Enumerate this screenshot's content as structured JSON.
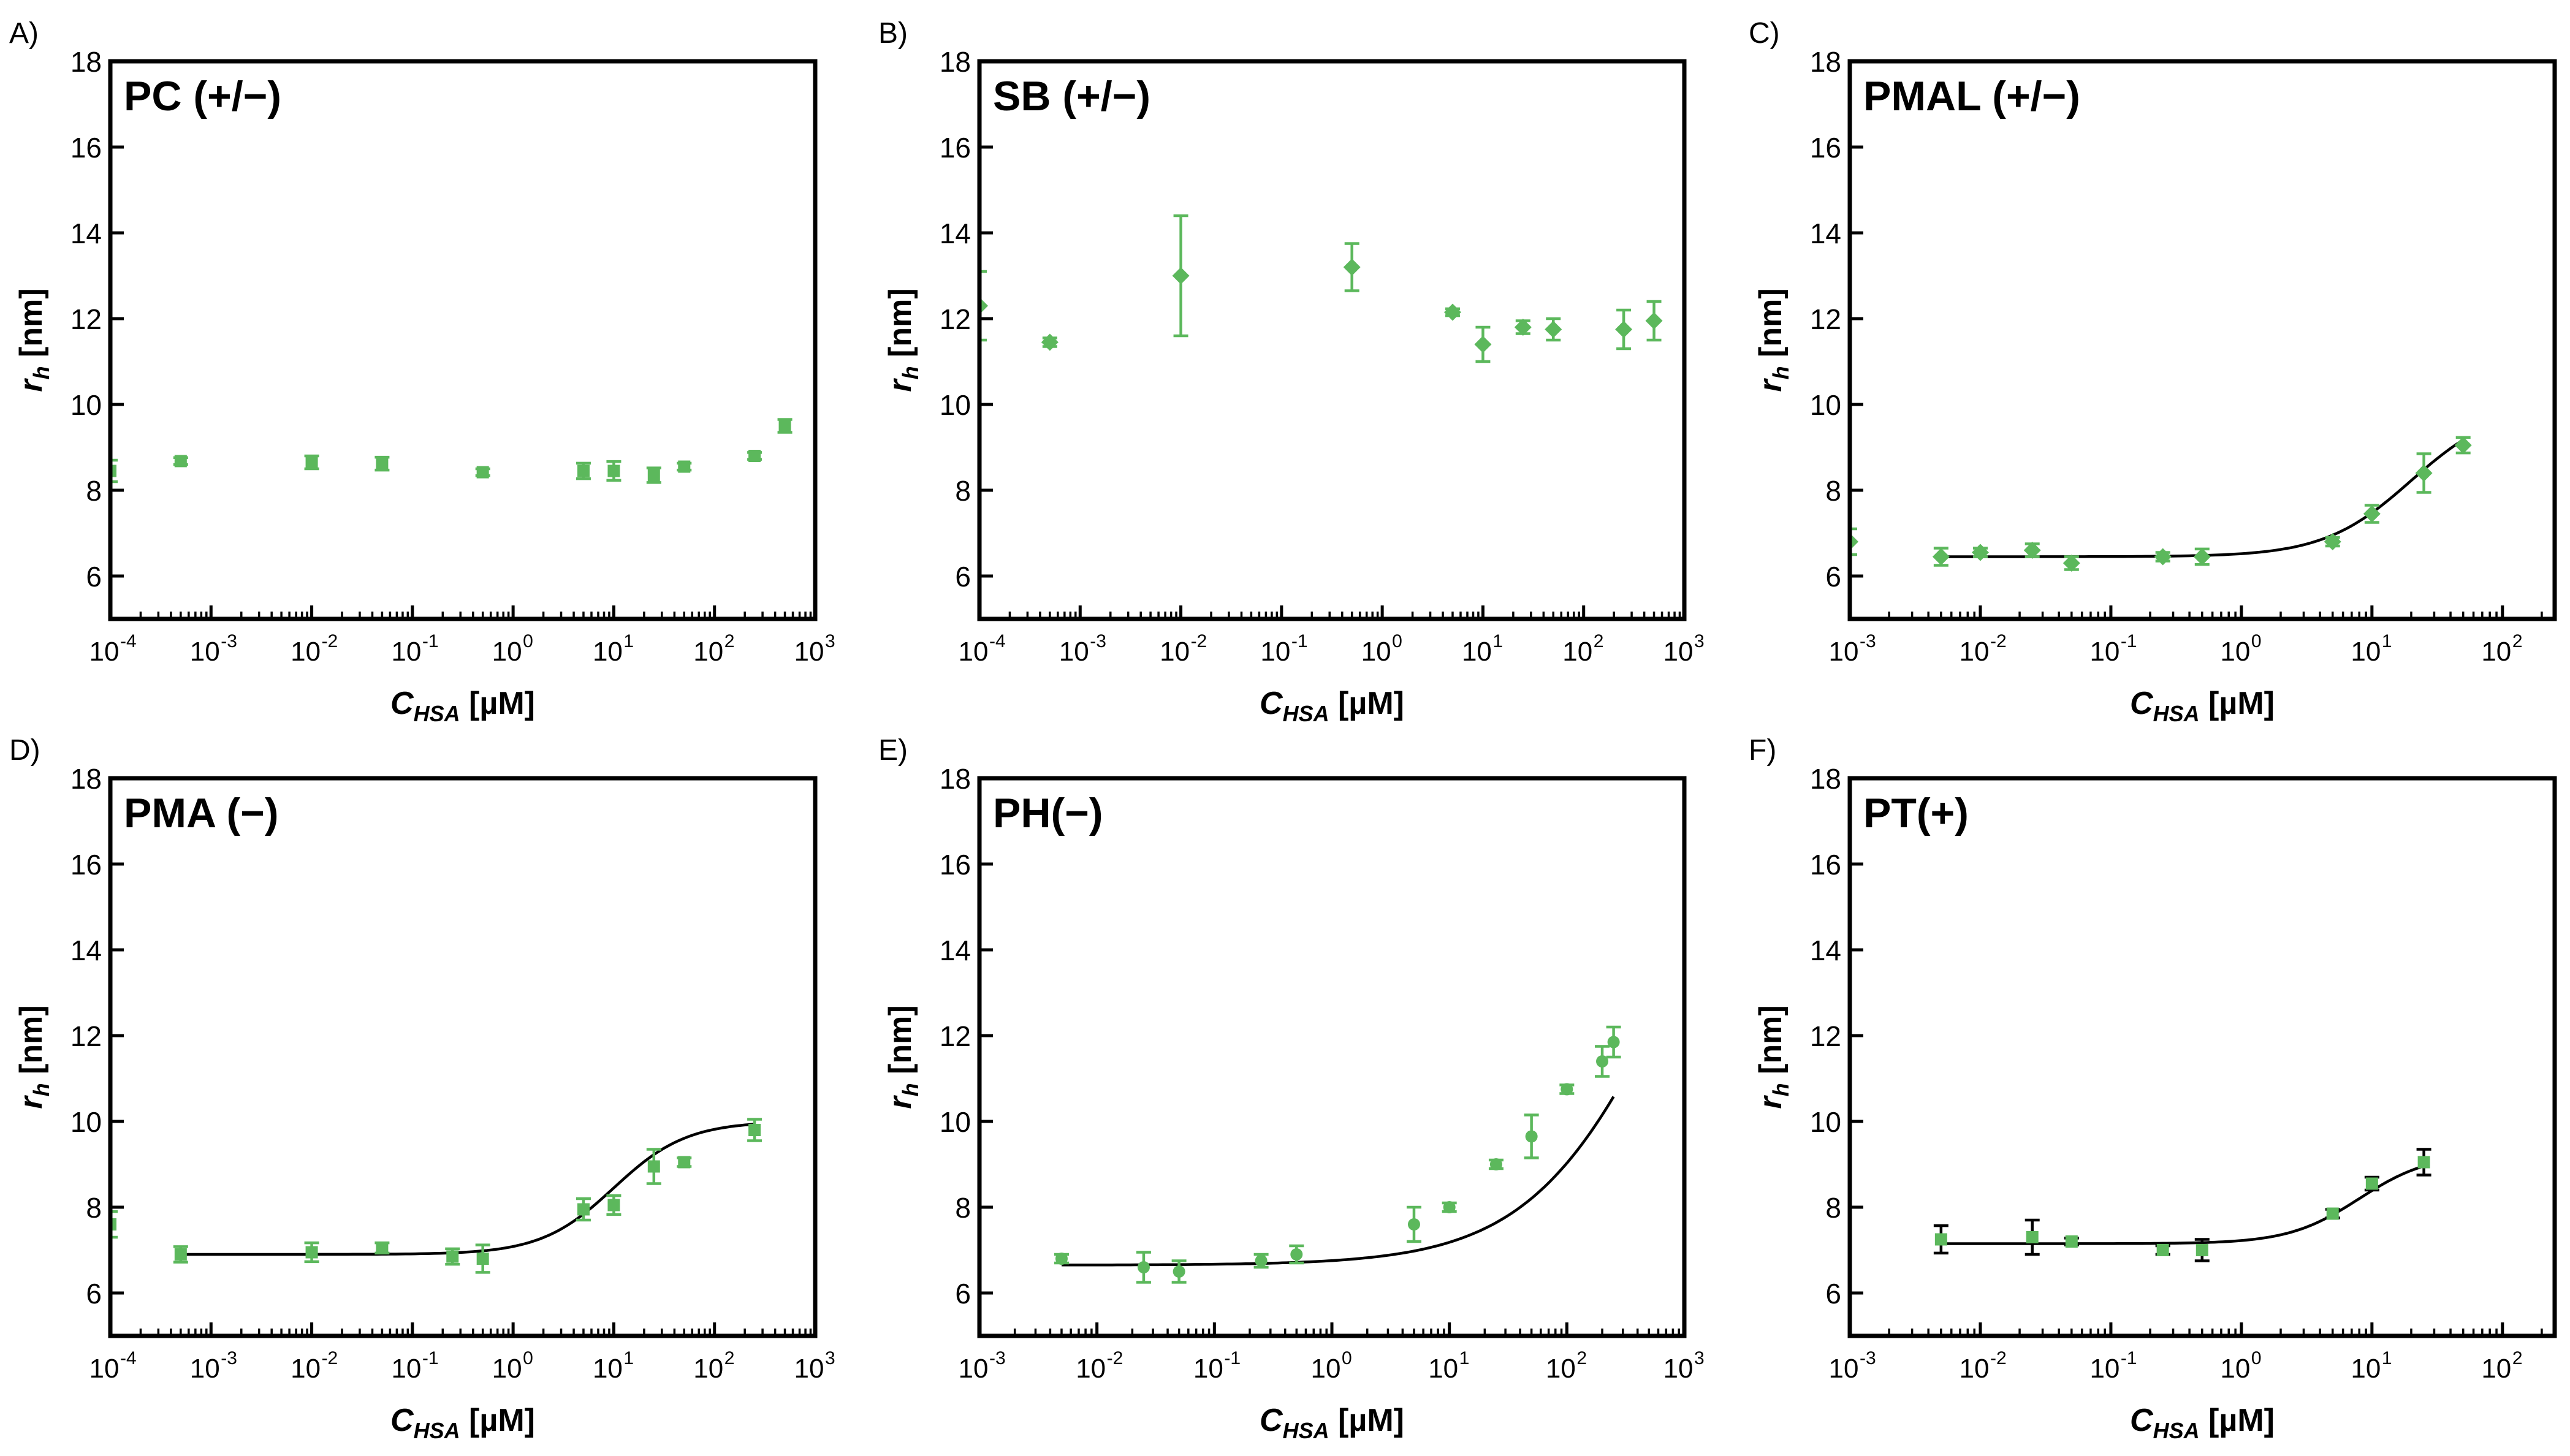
{
  "figure": {
    "marker_color": "#5cb85c",
    "fit_color": "#000000",
    "ylabel_main": "r",
    "ylabel_sub": "h",
    "ylabel_unit": "[nm]",
    "xlabel_main": "C",
    "xlabel_sub": "HSA",
    "xlabel_unit": "[µM]"
  },
  "chart_data": [
    {
      "type": "scatter",
      "panel_letter": "A)",
      "title": "PC (+/−)",
      "xscale": "log",
      "xlim_exp": [
        -4,
        3
      ],
      "ylim": [
        5,
        18
      ],
      "yticks": [
        6,
        8,
        10,
        12,
        14,
        16,
        18
      ],
      "x_tick_labels": [
        "10-4",
        "10-3",
        "10-2",
        "10-1",
        "100",
        "101",
        "102",
        "103"
      ],
      "points": [
        {
          "x": 0.0001,
          "y": 8.45,
          "err": 0.25
        },
        {
          "x": 0.0005,
          "y": 8.68,
          "err": 0.08
        },
        {
          "x": 0.01,
          "y": 8.65,
          "err": 0.15
        },
        {
          "x": 0.05,
          "y": 8.62,
          "err": 0.15
        },
        {
          "x": 0.5,
          "y": 8.42,
          "err": 0.08
        },
        {
          "x": 5,
          "y": 8.45,
          "err": 0.18
        },
        {
          "x": 10,
          "y": 8.45,
          "err": 0.22
        },
        {
          "x": 25,
          "y": 8.35,
          "err": 0.17
        },
        {
          "x": 50,
          "y": 8.55,
          "err": 0.08
        },
        {
          "x": 250,
          "y": 8.8,
          "err": 0.08
        },
        {
          "x": 500,
          "y": 9.5,
          "err": 0.15
        }
      ],
      "fit": null,
      "fit_color": null,
      "err_color": "green"
    },
    {
      "type": "scatter",
      "panel_letter": "B)",
      "title": "SB (+/−)",
      "xscale": "log",
      "xlim_exp": [
        -4,
        3
      ],
      "ylim": [
        5,
        18
      ],
      "yticks": [
        6,
        8,
        10,
        12,
        14,
        16,
        18
      ],
      "x_tick_labels": [
        "10-4",
        "10-3",
        "10-2",
        "10-1",
        "100",
        "101",
        "102",
        "103"
      ],
      "points": [
        {
          "x": 0.0001,
          "y": 12.3,
          "err": 0.8
        },
        {
          "x": 0.0005,
          "y": 11.45,
          "err": 0.1
        },
        {
          "x": 0.01,
          "y": 13.0,
          "err": 1.4
        },
        {
          "x": 0.5,
          "y": 13.2,
          "err": 0.55
        },
        {
          "x": 5,
          "y": 12.15,
          "err": 0.08
        },
        {
          "x": 10,
          "y": 11.4,
          "err": 0.4
        },
        {
          "x": 25,
          "y": 11.8,
          "err": 0.15
        },
        {
          "x": 50,
          "y": 11.75,
          "err": 0.25
        },
        {
          "x": 250,
          "y": 11.75,
          "err": 0.45
        },
        {
          "x": 500,
          "y": 11.95,
          "err": 0.45
        }
      ],
      "fit": null,
      "fit_color": null,
      "err_color": "green"
    },
    {
      "type": "scatter",
      "panel_letter": "C)",
      "title": "PMAL (+/−)",
      "xscale": "log",
      "xlim_exp": [
        -3,
        2.4
      ],
      "ylim": [
        5,
        18
      ],
      "yticks": [
        6,
        8,
        10,
        12,
        14,
        16,
        18
      ],
      "x_tick_labels": [
        "10-3",
        "10-2",
        "10-1",
        "100",
        "101",
        "102"
      ],
      "points": [
        {
          "x": 0.001,
          "y": 6.8,
          "err": 0.3
        },
        {
          "x": 0.005,
          "y": 6.45,
          "err": 0.2
        },
        {
          "x": 0.01,
          "y": 6.55,
          "err": 0.1
        },
        {
          "x": 0.025,
          "y": 6.6,
          "err": 0.15
        },
        {
          "x": 0.05,
          "y": 6.3,
          "err": 0.15
        },
        {
          "x": 0.25,
          "y": 6.45,
          "err": 0.1
        },
        {
          "x": 0.5,
          "y": 6.45,
          "err": 0.18
        },
        {
          "x": 5,
          "y": 6.8,
          "err": 0.1
        },
        {
          "x": 10,
          "y": 7.45,
          "err": 0.2
        },
        {
          "x": 25,
          "y": 8.4,
          "err": 0.45
        },
        {
          "x": 50,
          "y": 9.05,
          "err": 0.18
        }
      ],
      "fit": {
        "base": 6.45,
        "amp": 3.55,
        "x0": 20,
        "n": 1.3,
        "x_range": [
          0.005,
          50
        ]
      },
      "fit_color": "#000000",
      "err_color": "green"
    },
    {
      "type": "scatter",
      "panel_letter": "D)",
      "title": "PMA (−)",
      "xscale": "log",
      "xlim_exp": [
        -4,
        3
      ],
      "ylim": [
        5,
        18
      ],
      "yticks": [
        6,
        8,
        10,
        12,
        14,
        16,
        18
      ],
      "x_tick_labels": [
        "10-4",
        "10-3",
        "10-2",
        "10-1",
        "100",
        "101",
        "102",
        "103"
      ],
      "points": [
        {
          "x": 0.0001,
          "y": 7.6,
          "err": 0.3
        },
        {
          "x": 0.0005,
          "y": 6.9,
          "err": 0.18
        },
        {
          "x": 0.01,
          "y": 6.95,
          "err": 0.22
        },
        {
          "x": 0.05,
          "y": 7.05,
          "err": 0.12
        },
        {
          "x": 0.25,
          "y": 6.85,
          "err": 0.18
        },
        {
          "x": 0.5,
          "y": 6.8,
          "err": 0.32
        },
        {
          "x": 5,
          "y": 7.95,
          "err": 0.25
        },
        {
          "x": 10,
          "y": 8.05,
          "err": 0.22
        },
        {
          "x": 25,
          "y": 8.95,
          "err": 0.4
        },
        {
          "x": 50,
          "y": 9.05,
          "err": 0.1
        },
        {
          "x": 250,
          "y": 9.8,
          "err": 0.25
        }
      ],
      "fit": {
        "base": 6.9,
        "amp": 3.1,
        "x0": 10,
        "n": 1.2,
        "x_range": [
          0.0005,
          250
        ]
      },
      "fit_color": "#000000",
      "err_color": "green"
    },
    {
      "type": "scatter",
      "panel_letter": "E)",
      "title": "PH(−)",
      "xscale": "log",
      "xlim_exp": [
        -3,
        3
      ],
      "ylim": [
        5,
        18
      ],
      "yticks": [
        6,
        8,
        10,
        12,
        14,
        16,
        18
      ],
      "x_tick_labels": [
        "10-3",
        "10-2",
        "10-1",
        "100",
        "101",
        "102",
        "103"
      ],
      "points": [
        {
          "x": 0.005,
          "y": 6.8,
          "err": 0.1
        },
        {
          "x": 0.025,
          "y": 6.6,
          "err": 0.35
        },
        {
          "x": 0.05,
          "y": 6.5,
          "err": 0.25
        },
        {
          "x": 0.25,
          "y": 6.75,
          "err": 0.15
        },
        {
          "x": 0.5,
          "y": 6.9,
          "err": 0.2
        },
        {
          "x": 5,
          "y": 7.6,
          "err": 0.4
        },
        {
          "x": 10,
          "y": 8.0,
          "err": 0.1
        },
        {
          "x": 25,
          "y": 9.0,
          "err": 0.1
        },
        {
          "x": 50,
          "y": 9.65,
          "err": 0.5
        },
        {
          "x": 100,
          "y": 10.75,
          "err": 0.1
        },
        {
          "x": 200,
          "y": 11.4,
          "err": 0.35
        },
        {
          "x": 250,
          "y": 11.85,
          "err": 0.35
        }
      ],
      "fit": {
        "base": 6.65,
        "amp": 13.0,
        "x0": 800,
        "n": 0.72,
        "x_range": [
          0.005,
          250
        ]
      },
      "fit_color": "#000000",
      "err_color": "green"
    },
    {
      "type": "scatter",
      "panel_letter": "F)",
      "title": "PT(+)",
      "xscale": "log",
      "xlim_exp": [
        -3,
        2.4
      ],
      "ylim": [
        5,
        18
      ],
      "yticks": [
        6,
        8,
        10,
        12,
        14,
        16,
        18
      ],
      "x_tick_labels": [
        "10-3",
        "10-2",
        "10-1",
        "100",
        "101",
        "102"
      ],
      "points": [
        {
          "x": 0.005,
          "y": 7.25,
          "err": 0.32
        },
        {
          "x": 0.025,
          "y": 7.3,
          "err": 0.4
        },
        {
          "x": 0.05,
          "y": 7.2,
          "err": 0.08
        },
        {
          "x": 0.25,
          "y": 7.0,
          "err": 0.1
        },
        {
          "x": 0.5,
          "y": 7.0,
          "err": 0.25
        },
        {
          "x": 5,
          "y": 7.85,
          "err": 0.1
        },
        {
          "x": 10,
          "y": 8.55,
          "err": 0.15
        },
        {
          "x": 25,
          "y": 9.05,
          "err": 0.3
        }
      ],
      "fit": {
        "base": 7.15,
        "amp": 2.1,
        "x0": 8,
        "n": 1.6,
        "x_range": [
          0.005,
          25
        ]
      },
      "fit_color": "#000000",
      "err_color": "black"
    }
  ]
}
